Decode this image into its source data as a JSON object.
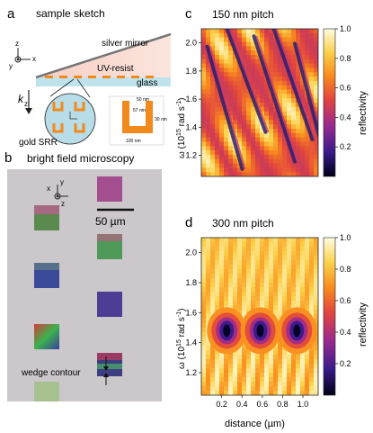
{
  "panels": {
    "a": {
      "letter": "a",
      "title": "sample sketch",
      "labels": {
        "mirror": "silver mirror",
        "resist": "UV-resist",
        "glass": "glass",
        "kz": "k",
        "kz_sub": "z",
        "srr": "gold SRR",
        "dim1": "50 nm",
        "dim2": "57 nm",
        "dim3": "30 nm",
        "dim4": "100 nm",
        "ax_x": "x",
        "ax_y": "y",
        "ax_z": "z"
      }
    },
    "b": {
      "letter": "b",
      "title": "bright field microscopy",
      "scalebar": "50 µm",
      "contour": "wedge contour",
      "ax_x": "x",
      "ax_y": "y",
      "ax_z": "z"
    },
    "c": {
      "letter": "c",
      "title": "150 nm pitch"
    },
    "d": {
      "letter": "d",
      "title": "300 nm pitch"
    }
  },
  "axes": {
    "ylabel_main": "ω (10",
    "ylabel_exp": "15",
    "ylabel_unit": " rad s",
    "ylabel_exp2": "-1",
    "ylabel_close": ")",
    "xlabel": "distance (µm)",
    "colorbar_label": "reflectivity"
  },
  "chart_data": [
    {
      "type": "heatmap",
      "title": "150 nm pitch",
      "xlabel": "",
      "ylabel": "ω (10^15 rad s^-1)",
      "ylim": [
        1.05,
        2.1
      ],
      "yticks": [
        1.2,
        1.4,
        1.6,
        1.8,
        2.0
      ],
      "colorbar": {
        "label": "reflectivity",
        "range": [
          0,
          1.0
        ],
        "ticks": [
          0.2,
          0.4,
          0.6,
          0.8,
          1.0
        ]
      },
      "colormap": [
        "#000018",
        "#3b1b8c",
        "#9c2a8e",
        "#e1443f",
        "#f98a1d",
        "#fcd14a",
        "#fffde2"
      ]
    },
    {
      "type": "heatmap",
      "title": "300 nm pitch",
      "xlabel": "distance (µm)",
      "ylabel": "ω (10^15 rad s^-1)",
      "xlim": [
        0,
        1.15
      ],
      "xticks": [
        0.2,
        0.4,
        0.6,
        0.8,
        1.0
      ],
      "ylim": [
        1.05,
        2.1
      ],
      "yticks": [
        1.2,
        1.4,
        1.6,
        1.8,
        2.0
      ],
      "colorbar": {
        "label": "reflectivity",
        "range": [
          0,
          1.0
        ],
        "ticks": [
          0.2,
          0.4,
          0.6,
          0.8,
          1.0
        ]
      },
      "resonance_x": [
        0.25,
        0.58,
        0.94
      ],
      "resonance_y": 1.48,
      "colormap": [
        "#000018",
        "#3b1b8c",
        "#9c2a8e",
        "#e1443f",
        "#f98a1d",
        "#fcd14a",
        "#fffde2"
      ]
    }
  ]
}
